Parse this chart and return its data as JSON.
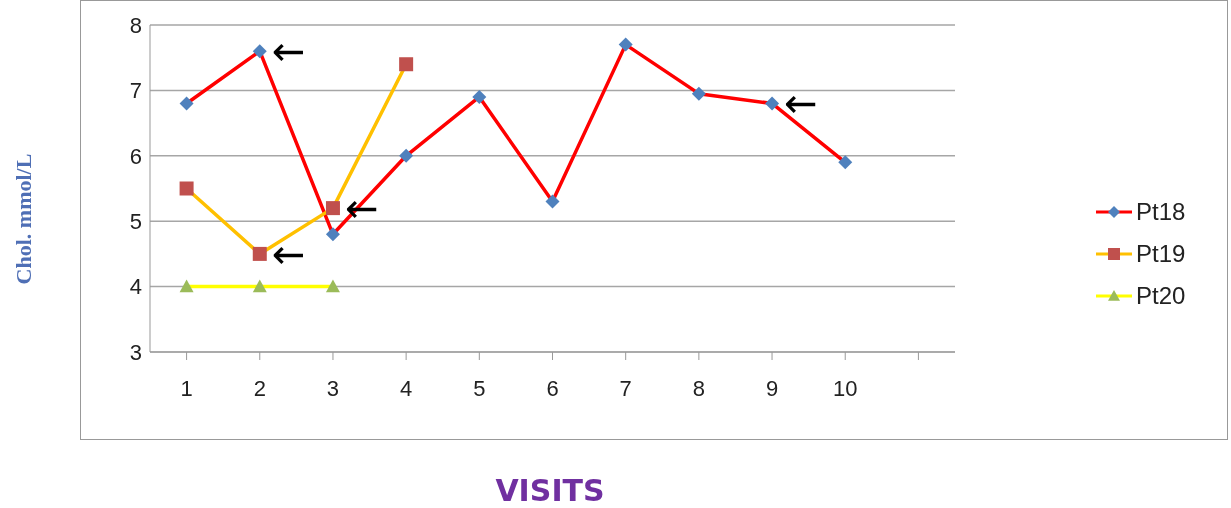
{
  "chart_data": {
    "type": "line",
    "xlabel": "VISITS",
    "ylabel": "Chol. mmol/L",
    "categories": [
      "1",
      "2",
      "3",
      "4",
      "5",
      "6",
      "7",
      "8",
      "9",
      "10",
      null
    ],
    "series": [
      {
        "name": "Pt18",
        "color": "#ff0000",
        "colors": [
          "#4f81bd",
          "#4f81bd",
          "#4f81bd",
          "#4f81bd",
          "#4f81bd",
          "#4f81bd",
          "#4f81bd",
          "#4f81bd",
          "#4f81bd",
          "#4f81bd",
          null
        ],
        "marker": "diamond",
        "values": [
          6.8,
          7.6,
          4.8,
          6.0,
          6.9,
          5.3,
          7.7,
          6.95,
          6.8,
          5.9,
          null
        ]
      },
      {
        "name": "Pt19",
        "color": "#ffc000",
        "colors": [
          "#c0504d",
          "#c0504d",
          "#c0504d",
          "#c0504d",
          null,
          null,
          null,
          null,
          null,
          null,
          null
        ],
        "marker": "square",
        "values": [
          5.5,
          4.5,
          5.2,
          7.4,
          null,
          null,
          null,
          null,
          null,
          null,
          null
        ]
      },
      {
        "name": "Pt20",
        "color": "#ffff00",
        "colors": [
          "#9bbb59",
          "#9bbb59",
          "#9bbb59",
          null,
          null,
          null,
          null,
          null,
          null,
          null,
          null
        ],
        "marker": "triangle",
        "values": [
          4,
          4,
          4,
          null,
          null,
          null,
          null,
          null,
          null,
          null,
          null
        ]
      }
    ],
    "ylim": [
      3,
      8
    ],
    "yticks": [
      3,
      4,
      5,
      6,
      7,
      8
    ],
    "grid": "y",
    "legend": "right",
    "annotations": [
      {
        "text": "←",
        "x": "2",
        "y": 7.6
      },
      {
        "text": "←",
        "x": "3",
        "y": 5.2
      },
      {
        "text": "←",
        "x": "2",
        "y": 4.5
      },
      {
        "text": "←",
        "x": "9",
        "y": 6.8
      }
    ]
  }
}
